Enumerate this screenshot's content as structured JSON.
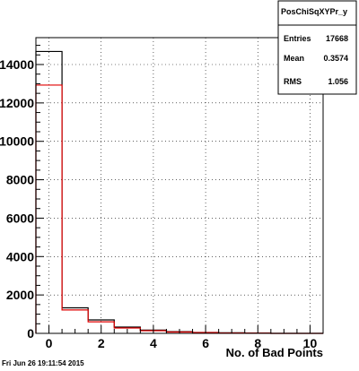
{
  "chart_data": {
    "type": "bar",
    "title": "",
    "xlabel": "No. of Bad Points",
    "ylabel": "",
    "xlim": [
      -0.5,
      10.5
    ],
    "ylim": [
      0,
      15400
    ],
    "x_ticks": [
      0,
      2,
      4,
      6,
      8,
      10
    ],
    "y_ticks": [
      0,
      2000,
      4000,
      6000,
      8000,
      10000,
      12000,
      14000
    ],
    "grid": true,
    "legend": "none",
    "bin_edges": [
      -0.5,
      0.5,
      1.5,
      2.5,
      3.5,
      4.5,
      5.5,
      6.5,
      7.5,
      8.5,
      9.5,
      10.5
    ],
    "series": [
      {
        "color": "#000000",
        "values": [
          14680,
          1330,
          700,
          330,
          170,
          90,
          50,
          30,
          20,
          0,
          0
        ]
      },
      {
        "color": "#e00000",
        "values": [
          12930,
          1220,
          600,
          280,
          140,
          70,
          40,
          20,
          10,
          0,
          0
        ]
      }
    ]
  },
  "stats_box": {
    "title": "PosChiSqXYPr_y",
    "rows": [
      {
        "label": "Entries",
        "value": "17668"
      },
      {
        "label": "Mean",
        "value": "0.3574"
      },
      {
        "label": "RMS",
        "value": "1.056"
      }
    ]
  },
  "footer": {
    "timestamp": "Fri Jun 26 19:11:54 2015"
  }
}
